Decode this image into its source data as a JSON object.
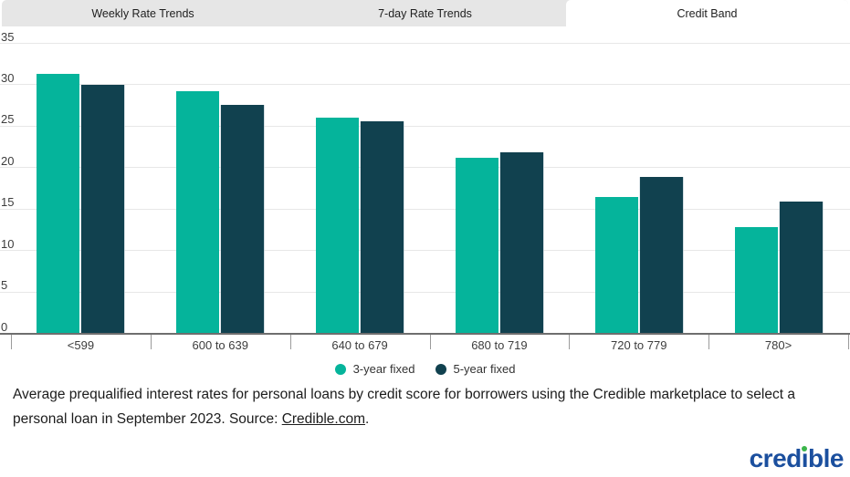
{
  "tabs": [
    {
      "label": "Weekly Rate Trends",
      "active": false
    },
    {
      "label": "7-day Rate Trends",
      "active": false
    },
    {
      "label": "Credit Band",
      "active": true
    }
  ],
  "chart_data": {
    "type": "bar",
    "categories": [
      "<599",
      "600 to 639",
      "640 to 679",
      "680 to 719",
      "720 to 779",
      "780>"
    ],
    "series": [
      {
        "name": "3-year fixed",
        "color": "#05b49b",
        "values": [
          31.3,
          29.2,
          26.0,
          21.2,
          16.4,
          12.8
        ]
      },
      {
        "name": "5-year fixed",
        "color": "#11414f",
        "values": [
          30.0,
          27.6,
          25.6,
          21.9,
          18.9,
          15.9
        ]
      }
    ],
    "title": "",
    "xlabel": "",
    "ylabel": "",
    "ylim": [
      0,
      35
    ],
    "yticks": [
      0,
      5,
      10,
      15,
      20,
      25,
      30,
      35
    ],
    "grid": true,
    "legend_position": "bottom",
    "bar_unit": "percent"
  },
  "caption": {
    "text_before_link": "Average prequalified interest rates for personal loans by credit score for borrowers using the Credible marketplace to select a personal loan in September 2023. Source: ",
    "link_text": "Credible.com",
    "text_after_link": "."
  },
  "logo": {
    "text": "credible",
    "part1": "cred",
    "dotless_i": "ı",
    "part2": "ble",
    "brand_blue": "#1b4f9e",
    "dot_green": "#3bb54a"
  },
  "colors": {
    "tab_inactive_bg": "#e6e6e6",
    "tab_active_bg": "#ffffff",
    "gridline": "#e7e7e7",
    "axis": "#6e6e6e",
    "series_3yr": "#05b49b",
    "series_5yr": "#11414f"
  }
}
